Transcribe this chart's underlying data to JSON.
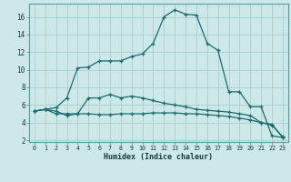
{
  "xlabel": "Humidex (Indice chaleur)",
  "bg_color": "#cce8e8",
  "grid_color": "#aacccc",
  "line_color": "#1a6b6b",
  "x_values": [
    0,
    1,
    2,
    3,
    4,
    5,
    6,
    7,
    8,
    9,
    10,
    11,
    12,
    13,
    14,
    15,
    16,
    17,
    18,
    19,
    20,
    21,
    22,
    23
  ],
  "curve_main": [
    5.3,
    5.5,
    5.7,
    6.8,
    10.2,
    10.3,
    11.0,
    11.0,
    11.0,
    11.5,
    11.8,
    13.0,
    16.0,
    16.8,
    16.3,
    16.2,
    13.0,
    12.2,
    7.5,
    7.5,
    5.8,
    5.8,
    2.5,
    2.3
  ],
  "curve_mid": [
    5.3,
    5.5,
    5.3,
    4.8,
    5.0,
    6.8,
    6.8,
    7.2,
    6.8,
    7.0,
    6.8,
    6.5,
    6.2,
    6.0,
    5.8,
    5.5,
    5.4,
    5.3,
    5.2,
    5.0,
    4.8,
    4.0,
    3.8,
    2.3
  ],
  "curve_flat": [
    5.3,
    5.5,
    5.0,
    5.0,
    5.0,
    5.0,
    4.9,
    4.9,
    5.0,
    5.0,
    5.0,
    5.1,
    5.1,
    5.1,
    5.0,
    5.0,
    4.9,
    4.8,
    4.7,
    4.5,
    4.3,
    4.0,
    3.7,
    2.4
  ],
  "ylim": [
    1.8,
    17.5
  ],
  "xlim": [
    -0.5,
    23.5
  ],
  "yticks": [
    2,
    4,
    6,
    8,
    10,
    12,
    14,
    16
  ],
  "xticks": [
    0,
    1,
    2,
    3,
    4,
    5,
    6,
    7,
    8,
    9,
    10,
    11,
    12,
    13,
    14,
    15,
    16,
    17,
    18,
    19,
    20,
    21,
    22,
    23
  ]
}
